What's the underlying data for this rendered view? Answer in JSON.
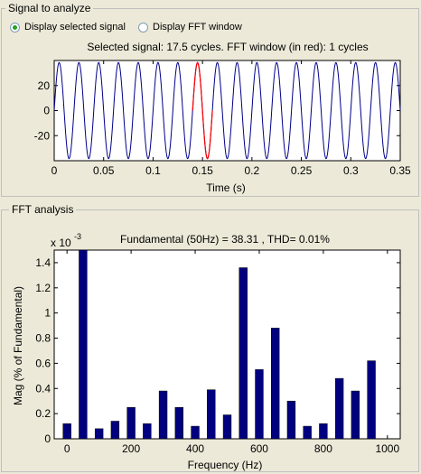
{
  "signal_panel": {
    "title": "Signal to analyze",
    "radio_selected_label": "Display selected signal",
    "radio_fft_label": "Display FFT window",
    "selected_option": "Display selected signal"
  },
  "fft_panel": {
    "title": "FFT analysis"
  },
  "chart_data": [
    {
      "type": "line",
      "title": "Selected signal: 17.5 cycles. FFT window (in red): 1 cycles",
      "xlabel": "Time (s)",
      "ylabel": "",
      "xlim": [
        0,
        0.35
      ],
      "ylim": [
        -40,
        40
      ],
      "xticks": [
        0,
        0.05,
        0.1,
        0.15,
        0.2,
        0.25,
        0.3,
        0.35
      ],
      "xtick_labels": [
        "0",
        "0.05",
        "0.1",
        "0.15",
        "0.2",
        "0.25",
        "0.3",
        "0.35"
      ],
      "yticks": [
        -20,
        0,
        20
      ],
      "ytick_labels": [
        "-20",
        "0",
        "20"
      ],
      "series": [
        {
          "color": "#00008b",
          "amplitude": 38.3,
          "frequency_hz": 50,
          "x_start": 0,
          "x_end": 0.35
        },
        {
          "color": "#ff0000",
          "amplitude": 38.3,
          "frequency_hz": 50,
          "x_start": 0.14,
          "x_end": 0.16
        }
      ],
      "grid": false
    },
    {
      "type": "bar",
      "title": "Fundamental (50Hz) = 38.31 , THD= 0.01%",
      "xlabel": "Frequency (Hz)",
      "ylabel": "Mag (% of Fundamental)",
      "scale_label": "x 10",
      "scale_exponent": "-3",
      "xlim": [
        -40,
        1040
      ],
      "ylim": [
        0,
        1.5
      ],
      "xticks": [
        0,
        200,
        400,
        600,
        800,
        1000
      ],
      "xtick_labels": [
        "0",
        "200",
        "400",
        "600",
        "800",
        "1000"
      ],
      "yticks": [
        0,
        0.2,
        0.4,
        0.6,
        0.8,
        1,
        1.2,
        1.4
      ],
      "ytick_labels": [
        "0",
        "0.2",
        "0.4",
        "0.6",
        "0.8",
        "1",
        "1.2",
        "1.4"
      ],
      "bar_color": "#00007f",
      "x": [
        0,
        50,
        100,
        150,
        200,
        250,
        300,
        350,
        400,
        450,
        500,
        550,
        600,
        650,
        700,
        750,
        800,
        850,
        900,
        950
      ],
      "values": [
        0.12,
        1.5,
        0.08,
        0.14,
        0.25,
        0.12,
        0.38,
        0.25,
        0.1,
        0.39,
        0.19,
        1.36,
        0.55,
        0.88,
        0.3,
        0.1,
        0.12,
        0.48,
        0.38,
        0.62
      ],
      "grid": false
    }
  ]
}
